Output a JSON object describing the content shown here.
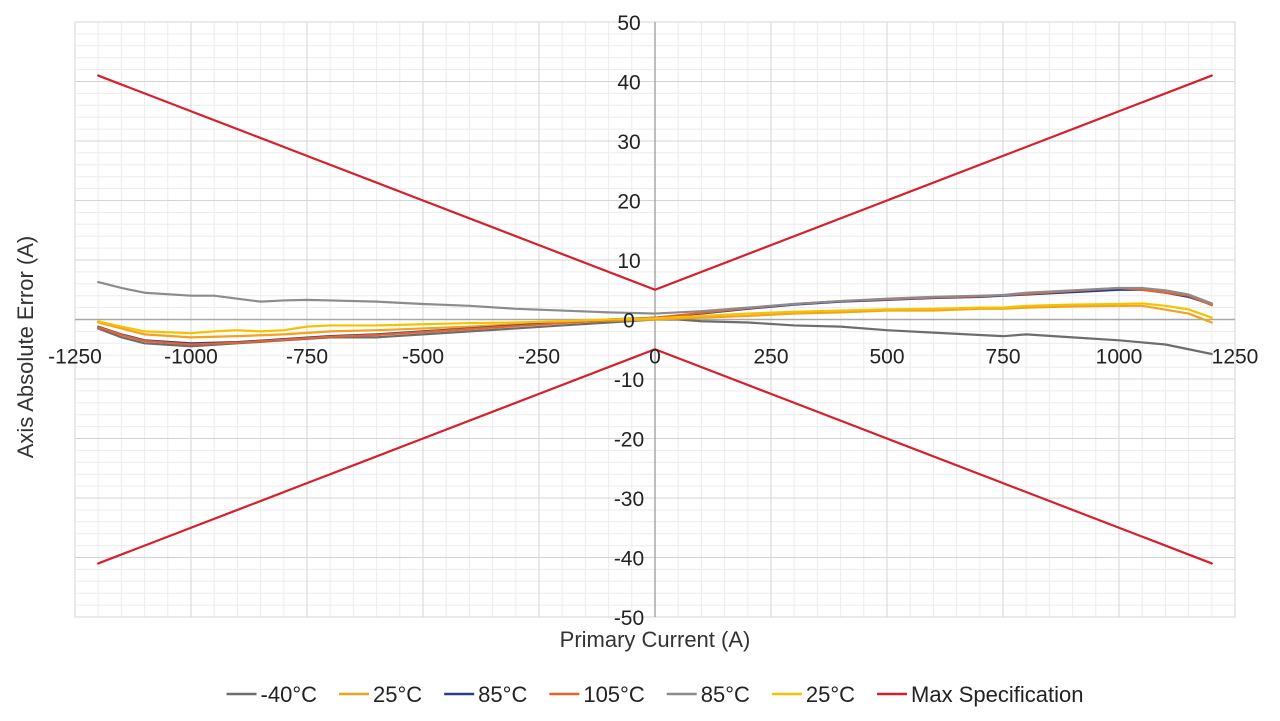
{
  "chart_data": {
    "type": "line",
    "title": "",
    "xlabel": "Primary Current (A)",
    "ylabel": "Axis Absolute Error (A)",
    "xlim": [
      -1250,
      1250
    ],
    "ylim": [
      -50,
      50
    ],
    "x_ticks": [
      -1250,
      -1000,
      -750,
      -500,
      -250,
      0,
      250,
      500,
      750,
      1000,
      1250
    ],
    "y_ticks": [
      -50,
      -40,
      -30,
      -20,
      -10,
      0,
      10,
      20,
      30,
      40,
      50
    ],
    "grid": true,
    "legend_position": "bottom",
    "series": [
      {
        "name": "-40°C",
        "color": "#6d6d6d",
        "points": [
          [
            -1200,
            -1.5
          ],
          [
            -1150,
            -3
          ],
          [
            -1100,
            -4
          ],
          [
            -1000,
            -4.5
          ],
          [
            -900,
            -4
          ],
          [
            -800,
            -3.5
          ],
          [
            -700,
            -3
          ],
          [
            -600,
            -3
          ],
          [
            -500,
            -2.5
          ],
          [
            -400,
            -2
          ],
          [
            -300,
            -1.5
          ],
          [
            -200,
            -1
          ],
          [
            -100,
            -0.5
          ],
          [
            0,
            0
          ],
          [
            50,
            0
          ],
          [
            100,
            -0.3
          ],
          [
            200,
            -0.5
          ],
          [
            300,
            -1
          ],
          [
            400,
            -1.2
          ],
          [
            500,
            -1.8
          ],
          [
            600,
            -2.2
          ],
          [
            700,
            -2.6
          ],
          [
            750,
            -2.8
          ],
          [
            800,
            -2.5
          ],
          [
            900,
            -3
          ],
          [
            1000,
            -3.5
          ],
          [
            1100,
            -4.2
          ],
          [
            1200,
            -5.8
          ]
        ]
      },
      {
        "name": "25°C",
        "color": "#f2a21b",
        "points": [
          [
            -1200,
            -0.5
          ],
          [
            -1150,
            -1.5
          ],
          [
            -1100,
            -2.5
          ],
          [
            -1000,
            -3
          ],
          [
            -900,
            -2.8
          ],
          [
            -800,
            -2.5
          ],
          [
            -700,
            -2
          ],
          [
            -600,
            -1.8
          ],
          [
            -500,
            -1.5
          ],
          [
            -400,
            -1.2
          ],
          [
            -300,
            -0.8
          ],
          [
            -200,
            -0.5
          ],
          [
            -100,
            -0.2
          ],
          [
            0,
            0
          ],
          [
            100,
            0.3
          ],
          [
            200,
            0.6
          ],
          [
            300,
            1
          ],
          [
            400,
            1.2
          ],
          [
            500,
            1.5
          ],
          [
            600,
            1.5
          ],
          [
            700,
            1.8
          ],
          [
            750,
            1.8
          ],
          [
            800,
            2
          ],
          [
            900,
            2.2
          ],
          [
            1000,
            2.3
          ],
          [
            1050,
            2.3
          ],
          [
            1150,
            1
          ],
          [
            1200,
            -0.5
          ]
        ]
      },
      {
        "name": "85°C",
        "color": "#2a3b8f",
        "points": [
          [
            -1200,
            -1.2
          ],
          [
            -1150,
            -2.5
          ],
          [
            -1100,
            -3.5
          ],
          [
            -1000,
            -4
          ],
          [
            -900,
            -3.8
          ],
          [
            -800,
            -3.3
          ],
          [
            -700,
            -2.8
          ],
          [
            -600,
            -2.5
          ],
          [
            -500,
            -2
          ],
          [
            -400,
            -1.5
          ],
          [
            -300,
            -1
          ],
          [
            -200,
            -0.5
          ],
          [
            -100,
            0
          ],
          [
            0,
            0.3
          ],
          [
            100,
            1
          ],
          [
            200,
            1.8
          ],
          [
            300,
            2.5
          ],
          [
            400,
            3
          ],
          [
            500,
            3.3
          ],
          [
            600,
            3.6
          ],
          [
            700,
            3.8
          ],
          [
            800,
            4.2
          ],
          [
            900,
            4.6
          ],
          [
            1000,
            5
          ],
          [
            1050,
            5
          ],
          [
            1100,
            4.5
          ],
          [
            1150,
            3.8
          ],
          [
            1200,
            2.5
          ]
        ]
      },
      {
        "name": "105°C",
        "color": "#e8632a",
        "points": [
          [
            -1200,
            -1.3
          ],
          [
            -1150,
            -2.6
          ],
          [
            -1100,
            -3.6
          ],
          [
            -1000,
            -4.2
          ],
          [
            -900,
            -3.9
          ],
          [
            -800,
            -3.4
          ],
          [
            -700,
            -2.9
          ],
          [
            -600,
            -2.6
          ],
          [
            -500,
            -2.1
          ],
          [
            -400,
            -1.6
          ],
          [
            -300,
            -1.1
          ],
          [
            -200,
            -0.6
          ],
          [
            -100,
            -0.1
          ],
          [
            0,
            0.3
          ],
          [
            100,
            1.1
          ],
          [
            200,
            1.9
          ],
          [
            300,
            2.6
          ],
          [
            400,
            3.1
          ],
          [
            500,
            3.4
          ],
          [
            600,
            3.7
          ],
          [
            700,
            3.9
          ],
          [
            800,
            4.3
          ],
          [
            900,
            4.8
          ],
          [
            1000,
            5.3
          ],
          [
            1050,
            5
          ],
          [
            1100,
            4.5
          ],
          [
            1150,
            4
          ],
          [
            1200,
            2.4
          ]
        ]
      },
      {
        "name": "85°C",
        "color": "#8c8c8c",
        "points": [
          [
            -1200,
            6.3
          ],
          [
            -1150,
            5.3
          ],
          [
            -1100,
            4.5
          ],
          [
            -1000,
            4
          ],
          [
            -950,
            4
          ],
          [
            -900,
            3.5
          ],
          [
            -850,
            3
          ],
          [
            -800,
            3.2
          ],
          [
            -750,
            3.3
          ],
          [
            -700,
            3.2
          ],
          [
            -600,
            3
          ],
          [
            -500,
            2.6
          ],
          [
            -400,
            2.3
          ],
          [
            -300,
            1.8
          ],
          [
            -200,
            1.5
          ],
          [
            -100,
            1.2
          ],
          [
            0,
            1
          ],
          [
            100,
            1.4
          ],
          [
            200,
            2
          ],
          [
            300,
            2.6
          ],
          [
            400,
            3.1
          ],
          [
            500,
            3.5
          ],
          [
            600,
            3.8
          ],
          [
            700,
            4
          ],
          [
            750,
            4.1
          ],
          [
            800,
            4.5
          ],
          [
            900,
            4.9
          ],
          [
            1000,
            5.3
          ],
          [
            1050,
            5.3
          ],
          [
            1100,
            4.9
          ],
          [
            1150,
            4.2
          ],
          [
            1200,
            2.7
          ]
        ]
      },
      {
        "name": "25°C",
        "color": "#f6c200",
        "points": [
          [
            -1200,
            -0.3
          ],
          [
            -1150,
            -1.2
          ],
          [
            -1100,
            -2
          ],
          [
            -1000,
            -2.3
          ],
          [
            -950,
            -2
          ],
          [
            -900,
            -1.8
          ],
          [
            -850,
            -2
          ],
          [
            -800,
            -1.8
          ],
          [
            -750,
            -1.2
          ],
          [
            -700,
            -1
          ],
          [
            -600,
            -1
          ],
          [
            -500,
            -0.8
          ],
          [
            -400,
            -0.6
          ],
          [
            -300,
            -0.5
          ],
          [
            -200,
            -0.3
          ],
          [
            -100,
            0
          ],
          [
            0,
            0.2
          ],
          [
            100,
            0.6
          ],
          [
            200,
            1
          ],
          [
            300,
            1.3
          ],
          [
            400,
            1.5
          ],
          [
            500,
            1.7
          ],
          [
            600,
            1.8
          ],
          [
            700,
            2
          ],
          [
            750,
            2
          ],
          [
            800,
            2.3
          ],
          [
            900,
            2.5
          ],
          [
            1000,
            2.6
          ],
          [
            1050,
            2.7
          ],
          [
            1100,
            2.3
          ],
          [
            1150,
            1.7
          ],
          [
            1200,
            0.3
          ]
        ]
      },
      {
        "name": "Max Specification",
        "color": "#d71e2b",
        "points": [
          [
            -1200,
            41
          ],
          [
            -1000,
            35
          ],
          [
            -750,
            27.5
          ],
          [
            -500,
            20
          ],
          [
            -250,
            12.5
          ],
          [
            0,
            5
          ],
          [
            250,
            12.5
          ],
          [
            500,
            20
          ],
          [
            750,
            27.5
          ],
          [
            1000,
            35
          ],
          [
            1200,
            41
          ]
        ]
      },
      {
        "name": "Max Specification (lower)",
        "color": "#d71e2b",
        "legend": false,
        "points": [
          [
            -1200,
            -41
          ],
          [
            -1000,
            -35
          ],
          [
            -750,
            -27.5
          ],
          [
            -500,
            -20
          ],
          [
            -250,
            -12.5
          ],
          [
            0,
            -5
          ],
          [
            250,
            -12.5
          ],
          [
            500,
            -20
          ],
          [
            750,
            -27.5
          ],
          [
            1000,
            -35
          ],
          [
            1200,
            -41
          ]
        ]
      }
    ]
  }
}
